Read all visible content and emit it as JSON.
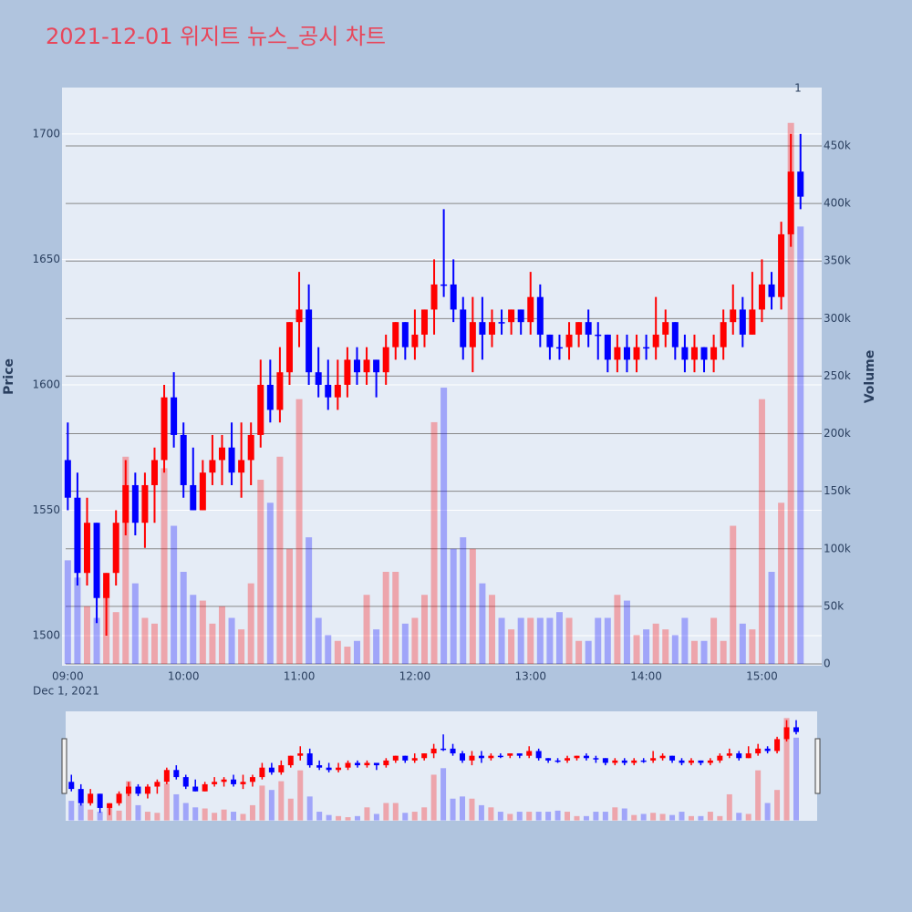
{
  "chart_data": {
    "type": "candlestick",
    "title": "2021-12-01 위지트 뉴스_공시 차트",
    "y_title": "Price",
    "y2_title": "Volume",
    "x_date_label": "Dec 1, 2021",
    "annotation": "1",
    "increasing_color": "#ff0000",
    "decreasing_color": "#0000ff",
    "x": [
      "09:00",
      "09:05",
      "09:10",
      "09:15",
      "09:20",
      "09:25",
      "09:30",
      "09:35",
      "09:40",
      "09:45",
      "09:50",
      "09:55",
      "10:00",
      "10:05",
      "10:10",
      "10:15",
      "10:20",
      "10:25",
      "10:30",
      "10:35",
      "10:40",
      "10:45",
      "10:50",
      "10:55",
      "11:00",
      "11:05",
      "11:10",
      "11:15",
      "11:20",
      "11:25",
      "11:30",
      "11:35",
      "11:40",
      "11:45",
      "11:50",
      "11:55",
      "12:00",
      "12:05",
      "12:10",
      "12:15",
      "12:20",
      "12:25",
      "12:30",
      "12:35",
      "12:40",
      "12:45",
      "12:50",
      "12:55",
      "13:00",
      "13:05",
      "13:10",
      "13:15",
      "13:20",
      "13:25",
      "13:30",
      "13:35",
      "13:40",
      "13:45",
      "13:50",
      "13:55",
      "14:00",
      "14:05",
      "14:10",
      "14:15",
      "14:20",
      "14:25",
      "14:30",
      "14:35",
      "14:40",
      "14:45",
      "14:50",
      "14:55",
      "15:00",
      "15:05",
      "15:10",
      "15:15",
      "15:20"
    ],
    "open": [
      1570,
      1555,
      1525,
      1545,
      1515,
      1525,
      1545,
      1560,
      1545,
      1560,
      1570,
      1595,
      1580,
      1560,
      1550,
      1565,
      1570,
      1575,
      1565,
      1570,
      1580,
      1600,
      1590,
      1605,
      1625,
      1630,
      1605,
      1600,
      1595,
      1600,
      1610,
      1605,
      1610,
      1605,
      1615,
      1625,
      1615,
      1620,
      1630,
      1640,
      1640,
      1630,
      1615,
      1625,
      1620,
      1625,
      1625,
      1630,
      1625,
      1635,
      1620,
      1615,
      1615,
      1620,
      1625,
      1620,
      1620,
      1610,
      1615,
      1610,
      1615,
      1615,
      1620,
      1625,
      1615,
      1610,
      1615,
      1610,
      1615,
      1625,
      1630,
      1620,
      1630,
      1640,
      1635,
      1660,
      1685
    ],
    "high": [
      1585,
      1565,
      1555,
      1545,
      1525,
      1550,
      1570,
      1565,
      1565,
      1575,
      1600,
      1605,
      1585,
      1575,
      1570,
      1580,
      1580,
      1585,
      1585,
      1585,
      1610,
      1610,
      1615,
      1625,
      1645,
      1640,
      1615,
      1610,
      1610,
      1615,
      1615,
      1615,
      1610,
      1620,
      1625,
      1625,
      1630,
      1630,
      1650,
      1670,
      1650,
      1635,
      1635,
      1635,
      1630,
      1630,
      1630,
      1630,
      1645,
      1640,
      1620,
      1620,
      1625,
      1625,
      1630,
      1625,
      1620,
      1620,
      1620,
      1620,
      1620,
      1635,
      1630,
      1625,
      1620,
      1620,
      1615,
      1620,
      1630,
      1640,
      1635,
      1645,
      1650,
      1645,
      1665,
      1700,
      1700
    ],
    "low": [
      1550,
      1520,
      1520,
      1505,
      1500,
      1520,
      1540,
      1540,
      1535,
      1545,
      1565,
      1575,
      1555,
      1550,
      1550,
      1560,
      1560,
      1560,
      1555,
      1560,
      1575,
      1585,
      1585,
      1600,
      1615,
      1600,
      1595,
      1590,
      1590,
      1595,
      1600,
      1600,
      1595,
      1600,
      1610,
      1610,
      1610,
      1615,
      1620,
      1635,
      1625,
      1610,
      1605,
      1610,
      1615,
      1620,
      1620,
      1620,
      1620,
      1615,
      1610,
      1610,
      1610,
      1615,
      1615,
      1610,
      1605,
      1605,
      1605,
      1605,
      1610,
      1610,
      1615,
      1610,
      1605,
      1605,
      1605,
      1605,
      1610,
      1620,
      1615,
      1620,
      1625,
      1630,
      1630,
      1655,
      1670
    ],
    "close": [
      1555,
      1525,
      1545,
      1515,
      1525,
      1545,
      1560,
      1545,
      1560,
      1570,
      1595,
      1580,
      1560,
      1550,
      1565,
      1570,
      1575,
      1565,
      1570,
      1580,
      1600,
      1590,
      1605,
      1625,
      1630,
      1605,
      1600,
      1595,
      1600,
      1610,
      1605,
      1610,
      1605,
      1615,
      1625,
      1615,
      1620,
      1630,
      1640,
      1640,
      1630,
      1615,
      1625,
      1620,
      1625,
      1625,
      1630,
      1625,
      1635,
      1620,
      1615,
      1615,
      1620,
      1625,
      1620,
      1620,
      1610,
      1615,
      1610,
      1615,
      1615,
      1620,
      1625,
      1615,
      1610,
      1615,
      1610,
      1615,
      1625,
      1630,
      1620,
      1630,
      1640,
      1635,
      1660,
      1685,
      1675
    ],
    "volume": [
      90000,
      75000,
      50000,
      40000,
      70000,
      45000,
      180000,
      70000,
      40000,
      35000,
      170000,
      120000,
      80000,
      60000,
      55000,
      35000,
      50000,
      40000,
      30000,
      70000,
      160000,
      140000,
      180000,
      100000,
      230000,
      110000,
      40000,
      25000,
      20000,
      15000,
      20000,
      60000,
      30000,
      80000,
      80000,
      35000,
      40000,
      60000,
      210000,
      240000,
      100000,
      110000,
      100000,
      70000,
      60000,
      40000,
      30000,
      40000,
      40000,
      40000,
      40000,
      45000,
      40000,
      20000,
      20000,
      40000,
      40000,
      60000,
      55000,
      25000,
      30000,
      35000,
      30000,
      25000,
      40000,
      20000,
      20000,
      40000,
      20000,
      120000,
      35000,
      30000,
      230000,
      80000,
      140000,
      470000,
      380000
    ],
    "xlim": [
      "08:57",
      "15:31"
    ],
    "xticks": [
      "09:00",
      "10:00",
      "11:00",
      "12:00",
      "13:00",
      "14:00",
      "15:00"
    ],
    "ylim": [
      1488,
      1718.5
    ],
    "yticks": [
      1500,
      1550,
      1600,
      1650,
      1700
    ],
    "y2lim": [
      -1600,
      500700
    ],
    "y2ticks": [
      0,
      {
        "value": 50000,
        "label": "50k"
      },
      {
        "value": 100000,
        "label": "100k"
      },
      {
        "value": 150000,
        "label": "150k"
      },
      {
        "value": 200000,
        "label": "200k"
      },
      {
        "value": 250000,
        "label": "250k"
      },
      {
        "value": 300000,
        "label": "300k"
      },
      {
        "value": 350000,
        "label": "350k"
      },
      {
        "value": 400000,
        "label": "400k"
      },
      {
        "value": 450000,
        "label": "450k"
      }
    ],
    "grid": true
  }
}
